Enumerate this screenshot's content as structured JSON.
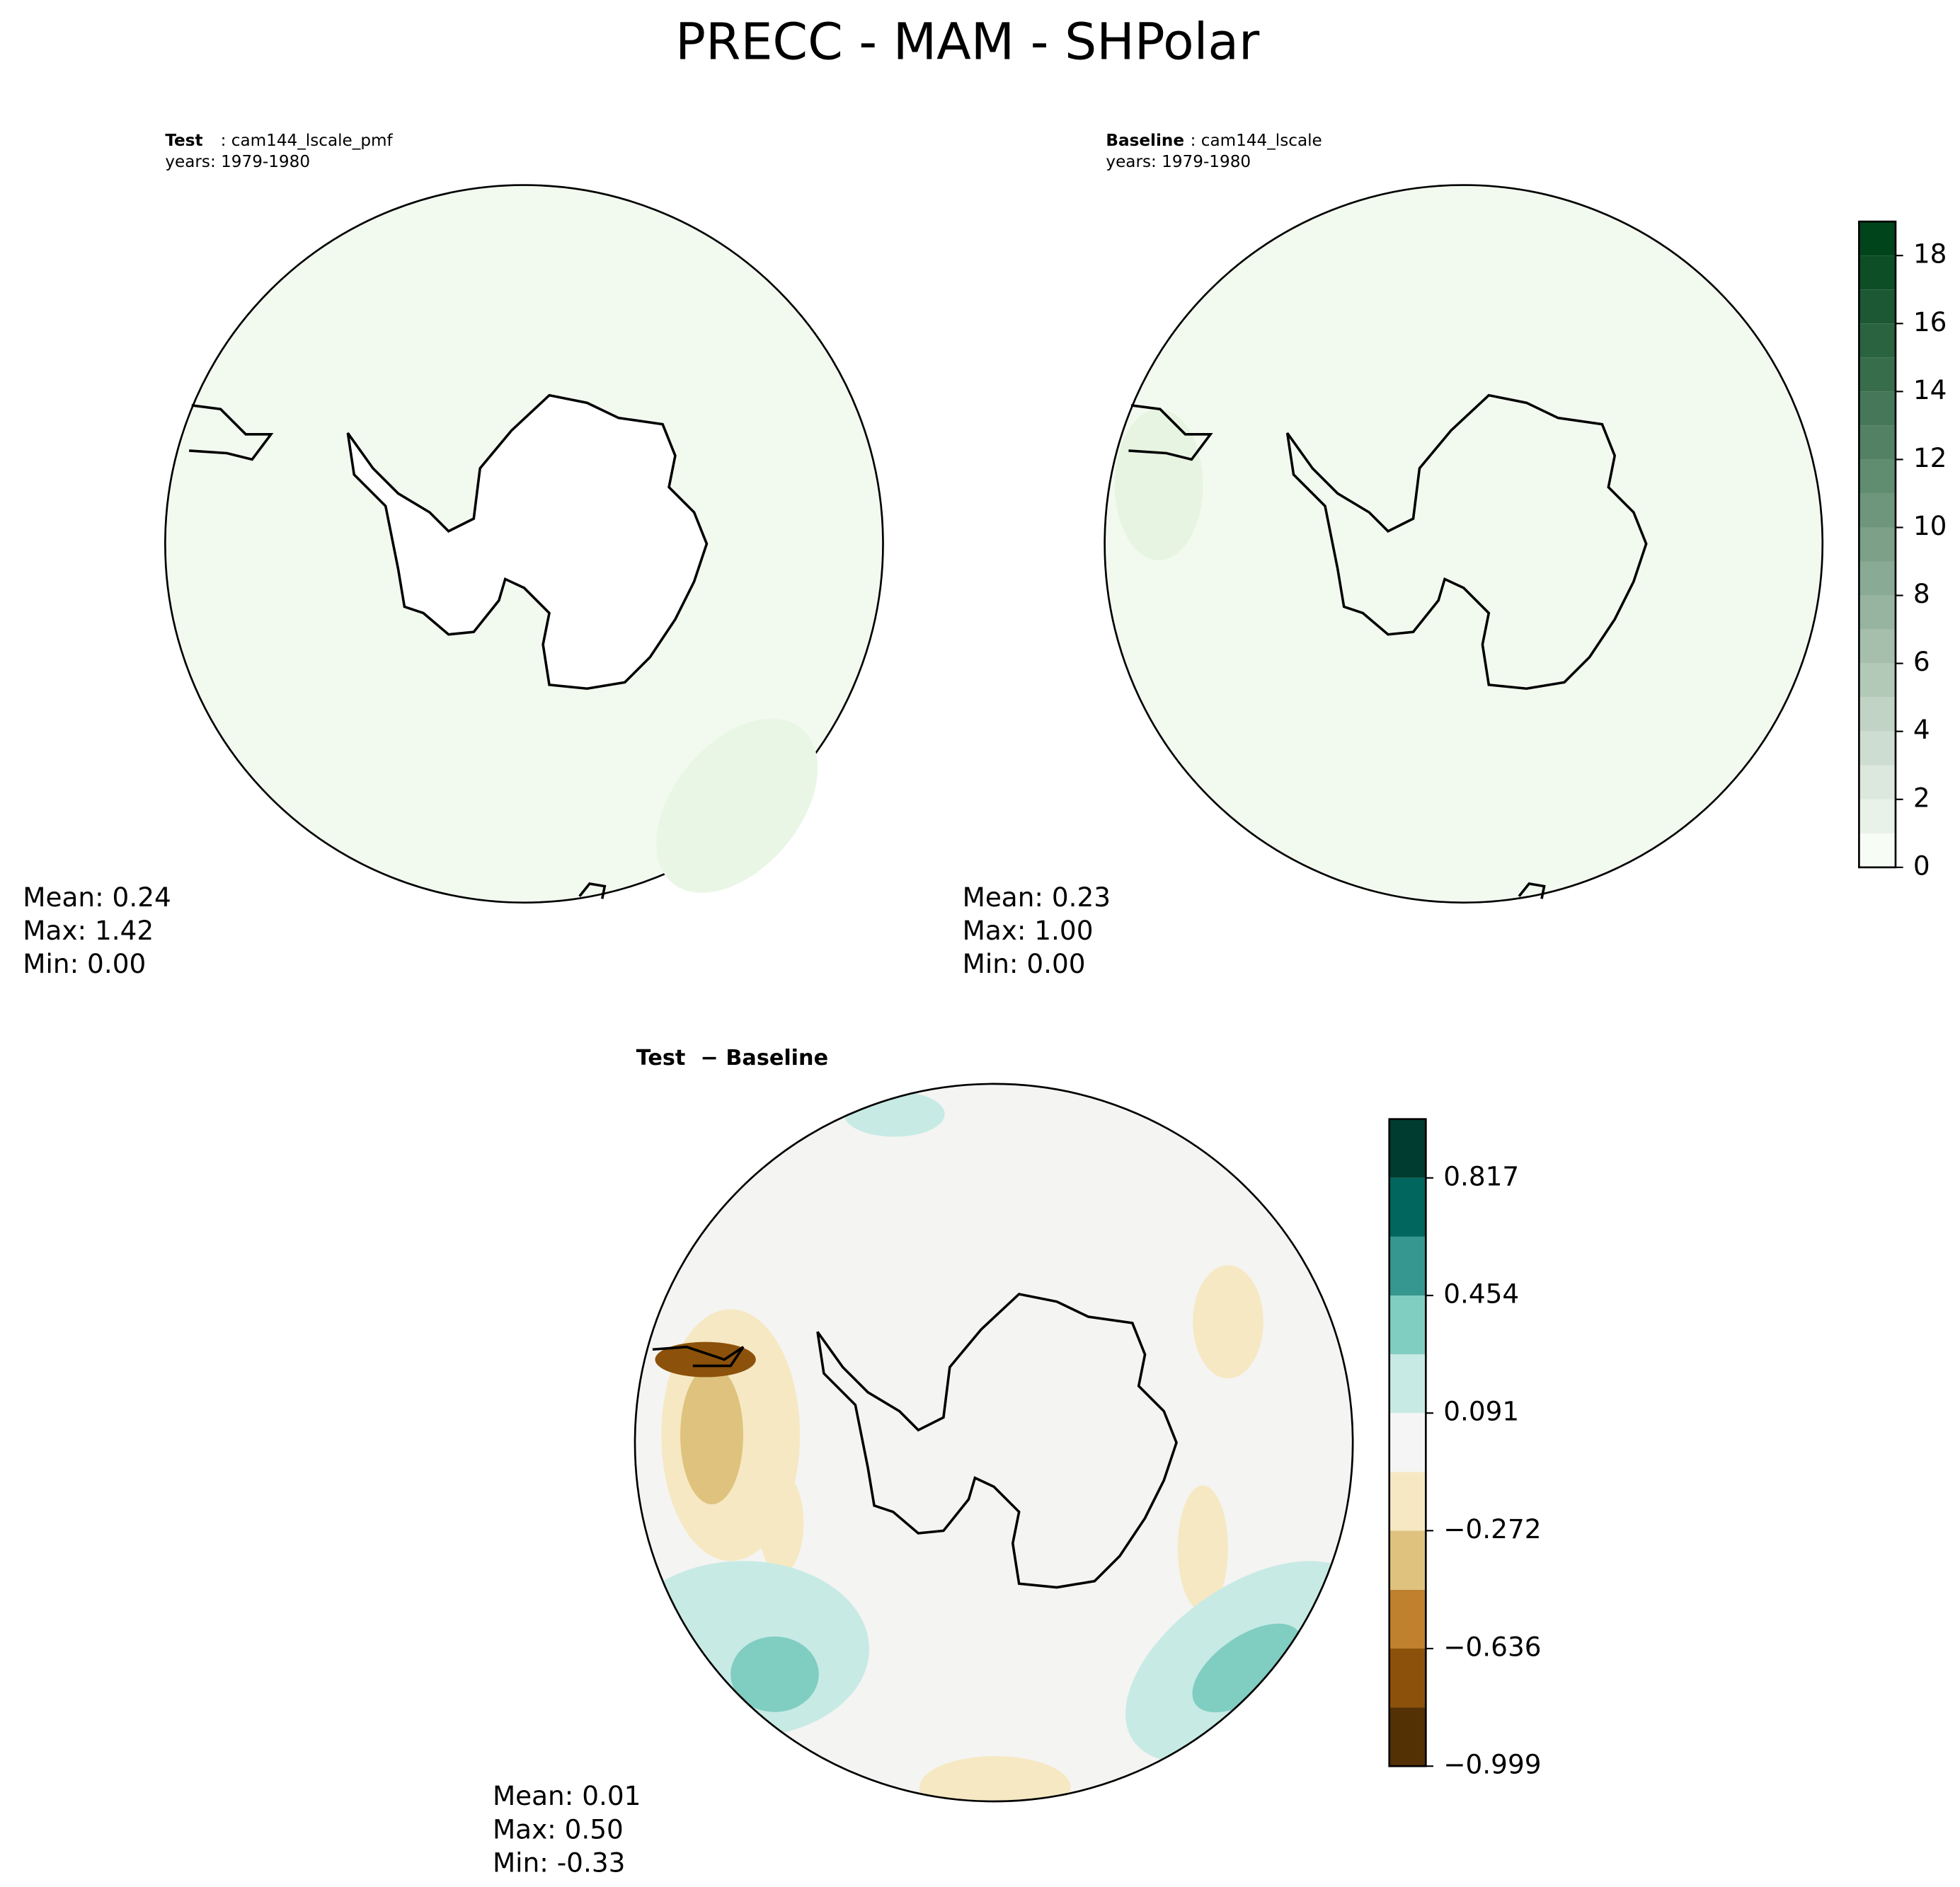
{
  "chart_data": [
    {
      "type": "polar-map",
      "title": "PRECC - MAM - SHPolar",
      "label": "Test",
      "case": ": cam144_lscale_pmf",
      "years": "years: 1979-1980",
      "stats": [
        "Mean:  0.24",
        "Max:  1.42",
        "Min:  0.00"
      ]
    },
    {
      "type": "polar-map",
      "label": "Baseline",
      "case": ": cam144_lscale",
      "years": "years: 1979-1980",
      "stats": [
        "Mean:  0.23",
        "Max:  1.00",
        "Min:  0.00"
      ],
      "colorbar": {
        "levels": [
          0,
          1,
          2,
          3,
          4,
          5,
          6,
          7,
          8,
          9,
          10,
          11,
          12,
          13,
          14,
          15,
          16,
          17,
          18,
          19
        ],
        "ylim": [
          0,
          19
        ],
        "yticks": [
          0,
          2,
          4,
          6,
          8,
          10,
          12,
          14,
          16,
          18
        ],
        "cmap": [
          "#f7fcf5",
          "#00441b"
        ]
      }
    },
    {
      "type": "polar-map",
      "label": "Test",
      "case": "− Baseline",
      "stats": [
        "Mean:  0.01",
        "Max:  0.50",
        "Min: -0.33"
      ],
      "colorbar": {
        "levels": [
          -0.999,
          -0.8175,
          -0.636,
          -0.4545,
          -0.272,
          -0.0905,
          0.091,
          0.2725,
          0.454,
          0.6355,
          0.817,
          0.9985
        ],
        "ylim": [
          -0.999,
          0.9985
        ],
        "yticks": [
          {
            "value": -0.999,
            "label": "−0.999"
          },
          {
            "value": -0.636,
            "label": "−0.636"
          },
          {
            "value": -0.272,
            "label": "−0.272"
          },
          0.091,
          0.454,
          0.817
        ],
        "colors": [
          "#543005",
          "#8c510a",
          "#bf812d",
          "#dfc27d",
          "#f6e8c3",
          "#f5f5f5",
          "#c7eae5",
          "#80cdc1",
          "#35978f",
          "#01665e",
          "#003c30"
        ]
      }
    }
  ]
}
